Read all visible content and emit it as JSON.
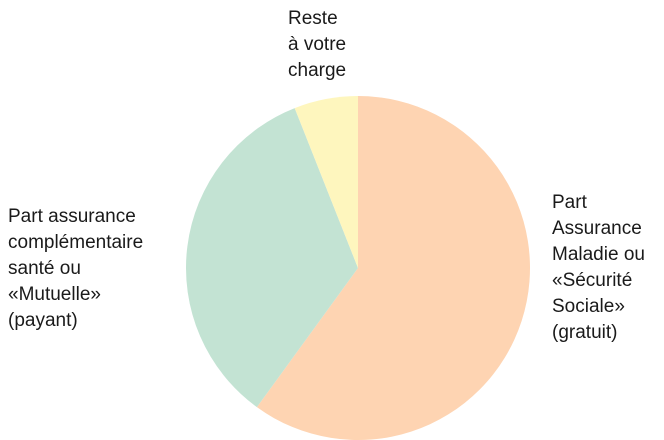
{
  "chart_data": {
    "type": "pie",
    "title": "",
    "slices": [
      {
        "label": "Part\nAssurance\nMaladie ou\n«Sécurité\nSociale»\n(gratuit)",
        "value": 60,
        "color": "#fed4b2"
      },
      {
        "label": "Part assurance\ncomplémentaire\nsanté ou\n«Mutuelle»\n(payant)",
        "value": 34,
        "color": "#c3e3d3"
      },
      {
        "label": "Reste\nà votre\ncharge",
        "value": 6,
        "color": "#fef6be"
      }
    ],
    "start_angle_deg": 0,
    "direction": "clockwise",
    "legend": "none"
  }
}
